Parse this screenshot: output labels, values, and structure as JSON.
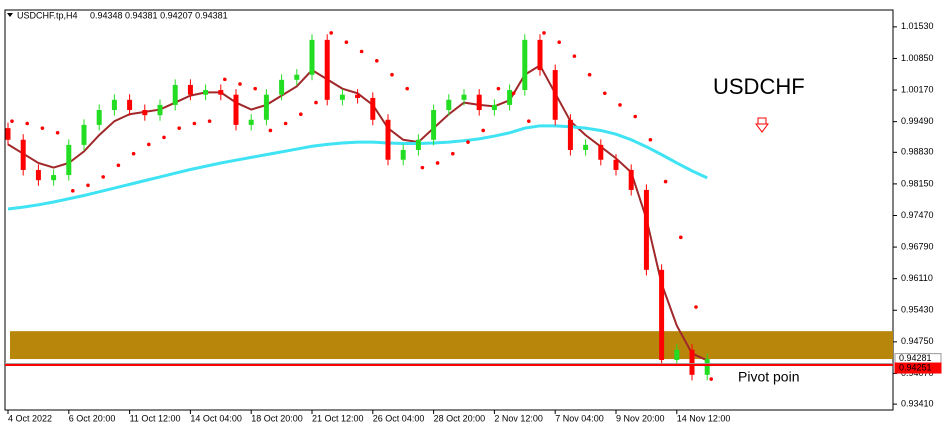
{
  "chart_data": {
    "type": "candlestick",
    "title": "USDCHF.tp,H4",
    "subtitle": "0.94348 0.94381 0.94207 0.94381",
    "annotations": [
      "USDCHF",
      "Pivot poin"
    ],
    "categories": [
      "4 Oct 2022",
      null,
      null,
      null,
      "6 Oct 20:00",
      null,
      null,
      null,
      "11 Oct 12:00",
      null,
      null,
      null,
      "14 Oct 04:00",
      null,
      null,
      null,
      "18 Oct 20:00",
      null,
      null,
      null,
      "21 Oct 12:00",
      null,
      null,
      null,
      "26 Oct 04:00",
      null,
      null,
      null,
      "28 Oct 20:00",
      null,
      null,
      null,
      "2 Nov 12:00",
      null,
      null,
      null,
      "7 Nov 04:00",
      null,
      null,
      null,
      "9 Nov 20:00",
      null,
      null,
      null,
      "14 Nov 12:00",
      null,
      null
    ],
    "open": [
      0.9935,
      0.991,
      0.9845,
      0.9823,
      0.9834,
      0.9899,
      0.9942,
      0.9974,
      0.9996,
      0.9974,
      0.9963,
      0.9985,
      1.0028,
      1.0007,
      1.0017,
      1.0007,
      0.9942,
      0.9953,
      1.0007,
      1.0039,
      1.005,
      1.0125,
      0.9996,
      1.0007,
      1.0,
      0.9953,
      0.9867,
      0.9888,
      0.991,
      0.9974,
      0.9996,
      1.0007,
      0.9974,
      0.9985,
      1.0017,
      1.0125,
      1.006,
      0.9953,
      0.9888,
      0.9899,
      0.9867,
      0.9845,
      0.9802,
      0.963,
      0.9436,
      0.9458,
      0.9404
    ],
    "high": [
      0.9947,
      0.9922,
      0.9857,
      0.9846,
      0.9911,
      0.9954,
      0.9986,
      1.0008,
      1.0008,
      0.9986,
      0.9997,
      1.004,
      1.004,
      1.0029,
      1.0029,
      1.0019,
      0.9965,
      1.0019,
      1.0051,
      1.0062,
      1.0137,
      1.0137,
      1.0019,
      1.0019,
      1.0012,
      0.9965,
      0.99,
      0.9922,
      0.9986,
      1.0008,
      1.0019,
      1.0019,
      0.9997,
      1.0029,
      1.0137,
      1.0137,
      1.0072,
      0.9965,
      0.9911,
      0.9911,
      0.9879,
      0.9857,
      0.9814,
      0.9642,
      0.947,
      0.947,
      0.945
    ],
    "low": [
      0.9898,
      0.9833,
      0.9811,
      0.9811,
      0.9822,
      0.9887,
      0.993,
      0.9962,
      0.9962,
      0.9951,
      0.9951,
      0.9973,
      0.9995,
      0.9995,
      0.9995,
      0.993,
      0.993,
      0.9941,
      0.9995,
      1.0027,
      1.0038,
      0.9984,
      0.9984,
      0.9988,
      0.9941,
      0.9855,
      0.9855,
      0.9876,
      0.9898,
      0.9962,
      0.9984,
      0.9962,
      0.9962,
      0.9973,
      1.0005,
      1.0048,
      0.9941,
      0.9876,
      0.9876,
      0.9855,
      0.9833,
      0.979,
      0.9618,
      0.9424,
      0.9424,
      0.9392,
      0.9392
    ],
    "close": [
      0.991,
      0.9845,
      0.9823,
      0.9834,
      0.9899,
      0.9942,
      0.9974,
      0.9996,
      0.9974,
      0.9963,
      0.9985,
      1.0028,
      1.0007,
      1.0017,
      1.0007,
      0.9942,
      0.9953,
      1.0007,
      1.0039,
      1.005,
      1.0125,
      0.9996,
      1.0007,
      1.0,
      0.9953,
      0.9867,
      0.9888,
      0.991,
      0.9974,
      0.9996,
      1.0007,
      0.9974,
      0.9985,
      1.0017,
      1.0125,
      1.006,
      0.9953,
      0.9888,
      0.9899,
      0.9867,
      0.9845,
      0.9802,
      0.963,
      0.9436,
      0.9458,
      0.9404,
      0.9438
    ],
    "up_color": "#22dd22",
    "down_color": "#ff0000",
    "lines": [
      {
        "color": "#a0282a",
        "values": [
          0.99,
          0.988,
          0.986,
          0.985,
          0.986,
          0.9885,
          0.992,
          0.995,
          0.9965,
          0.997,
          0.9975,
          0.999,
          1.0005,
          1.0012,
          1.0012,
          0.999,
          0.9975,
          0.9985,
          1.0005,
          1.0025,
          1.006,
          1.004,
          1.002,
          1.001,
          0.9985,
          0.9935,
          0.991,
          0.9905,
          0.9935,
          0.9965,
          0.999,
          0.9985,
          0.9982,
          0.9995,
          1.005,
          1.007,
          1.001,
          0.995,
          0.992,
          0.9895,
          0.987,
          0.984,
          0.974,
          0.96,
          0.951,
          0.945,
          0.9435
        ]
      },
      {
        "color": "#3fe3f3",
        "values": [
          0.9761,
          0.9765,
          0.977,
          0.9776,
          0.9783,
          0.979,
          0.9798,
          0.9806,
          0.9814,
          0.9822,
          0.983,
          0.9838,
          0.9846,
          0.9853,
          0.986,
          0.9866,
          0.9872,
          0.9878,
          0.9884,
          0.989,
          0.9896,
          0.99,
          0.9903,
          0.9905,
          0.9905,
          0.9903,
          0.9902,
          0.9902,
          0.9903,
          0.9905,
          0.9908,
          0.9912,
          0.9918,
          0.9925,
          0.9935,
          0.994,
          0.994,
          0.9938,
          0.9935,
          0.993,
          0.9922,
          0.991,
          0.9895,
          0.9878,
          0.986,
          0.9843,
          0.9828
        ]
      }
    ],
    "sar": {
      "color": "#ff0000",
      "values": [
        0.995,
        0.9945,
        0.9935,
        0.9925,
        0.98,
        0.9812,
        0.983,
        0.9855,
        0.988,
        0.99,
        0.9915,
        0.9935,
        0.9945,
        0.995,
        1.004,
        1.003,
        1.002,
        0.993,
        0.9945,
        0.9965,
        0.999,
        1.014,
        1.012,
        1.01,
        1.008,
        1.005,
        1.002,
        0.985,
        0.986,
        0.988,
        0.9905,
        0.993,
        1.002,
        1.001,
        0.995,
        1.014,
        1.012,
        1.009,
        1.005,
        1.001,
        0.9985,
        0.996,
        0.991,
        0.982,
        0.97,
        0.955,
        0.9395
      ]
    },
    "zone": {
      "color": "#b8860b",
      "range": [
        0.9438,
        0.9498
      ]
    },
    "price_lines": [
      {
        "value": 0.94281,
        "color": "#999999"
      },
      {
        "value": 0.94251,
        "color": "#ff0000"
      }
    ],
    "ylim": [
      0.9324,
      1.0185
    ],
    "yticks": [
      {
        "value": 1.0153,
        "label": "1.01530"
      },
      {
        "value": 1.0085,
        "label": "1.00850"
      },
      {
        "value": 1.0017,
        "label": "1.00170"
      },
      {
        "value": 0.9949,
        "label": "0.99490"
      },
      {
        "value": 0.9883,
        "label": "0.98830"
      },
      {
        "value": 0.9815,
        "label": "0.98150"
      },
      {
        "value": 0.9747,
        "label": "0.97470"
      },
      {
        "value": 0.9679,
        "label": "0.96790"
      },
      {
        "value": 0.9611,
        "label": "0.96110"
      },
      {
        "value": 0.9543,
        "label": "0.95430"
      },
      {
        "value": 0.9475,
        "label": "0.94750"
      },
      {
        "value": 0.9407,
        "label": "0.94070"
      },
      {
        "value": 0.9341,
        "label": "0.93410"
      }
    ]
  }
}
